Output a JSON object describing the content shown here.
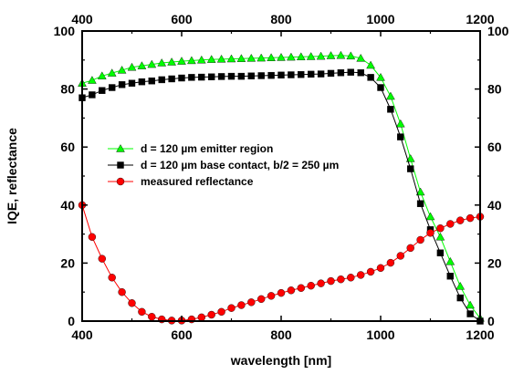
{
  "chart_data": {
    "type": "line",
    "title": "",
    "xlabel": "wavelength [nm]",
    "ylabel": "IQE, reflectance",
    "xlim": [
      400,
      1200
    ],
    "ylim": [
      0,
      100
    ],
    "xticks": [
      400,
      600,
      800,
      1000,
      1200
    ],
    "yticks": [
      0,
      20,
      40,
      60,
      80,
      100
    ],
    "top_axis_labels": true,
    "right_axis_labels": true,
    "grid": false,
    "legend_position": "center-left",
    "series": [
      {
        "name": "d = 120 µm emitter region",
        "color": "#00ff00",
        "marker": "triangle",
        "x": [
          400,
          420,
          440,
          460,
          480,
          500,
          520,
          540,
          560,
          580,
          600,
          620,
          640,
          660,
          680,
          700,
          720,
          740,
          760,
          780,
          800,
          820,
          840,
          860,
          880,
          900,
          920,
          940,
          960,
          980,
          1000,
          1020,
          1040,
          1060,
          1080,
          1100,
          1120,
          1140,
          1160,
          1180,
          1200
        ],
        "y": [
          82,
          83,
          84.5,
          85.5,
          86.5,
          87.5,
          88,
          88.5,
          89,
          89.3,
          89.6,
          89.8,
          90,
          90.2,
          90.3,
          90.4,
          90.5,
          90.6,
          90.7,
          90.8,
          90.9,
          91,
          91.1,
          91.2,
          91.3,
          91.5,
          91.6,
          91.4,
          90.6,
          88.2,
          84,
          77.5,
          68,
          56,
          44.5,
          36,
          29,
          20.5,
          12,
          5.5,
          1
        ]
      },
      {
        "name": "d = 120 µm base contact, b/2 = 250 µm",
        "color": "#000000",
        "marker": "square",
        "x": [
          400,
          420,
          440,
          460,
          480,
          500,
          520,
          540,
          560,
          580,
          600,
          620,
          640,
          660,
          680,
          700,
          720,
          740,
          760,
          780,
          800,
          820,
          840,
          860,
          880,
          900,
          920,
          940,
          960,
          980,
          1000,
          1020,
          1040,
          1060,
          1080,
          1100,
          1120,
          1140,
          1160,
          1180,
          1200
        ],
        "y": [
          77,
          78,
          79.5,
          80.5,
          81.5,
          82,
          82.5,
          82.8,
          83.2,
          83.5,
          83.8,
          84,
          84.1,
          84.2,
          84.3,
          84.4,
          84.4,
          84.5,
          84.6,
          84.7,
          84.8,
          84.9,
          85,
          85.1,
          85.2,
          85.4,
          85.6,
          85.8,
          85.6,
          84,
          80.5,
          73,
          63.5,
          52.5,
          40.5,
          31.5,
          23.5,
          15.5,
          8,
          2.5,
          0
        ]
      },
      {
        "name": "measured reflectance",
        "color": "#ff0000",
        "marker": "circle",
        "x": [
          400,
          420,
          440,
          460,
          480,
          500,
          520,
          540,
          560,
          580,
          600,
          620,
          640,
          660,
          680,
          700,
          720,
          740,
          760,
          780,
          800,
          820,
          840,
          860,
          880,
          900,
          920,
          940,
          960,
          980,
          1000,
          1020,
          1040,
          1060,
          1080,
          1100,
          1120,
          1140,
          1160,
          1180,
          1200
        ],
        "y": [
          40,
          29,
          21.5,
          15,
          10,
          6.2,
          3.2,
          1.5,
          0.6,
          0.2,
          0.2,
          0.6,
          1.3,
          2.2,
          3.2,
          4.5,
          5.5,
          6.5,
          7.6,
          8.7,
          9.7,
          10.6,
          11.4,
          12.2,
          13,
          13.8,
          14.4,
          15,
          15.9,
          17,
          18.3,
          20.1,
          22.5,
          25.2,
          28,
          30.4,
          32,
          33.5,
          34.7,
          35.5,
          36
        ]
      }
    ]
  }
}
